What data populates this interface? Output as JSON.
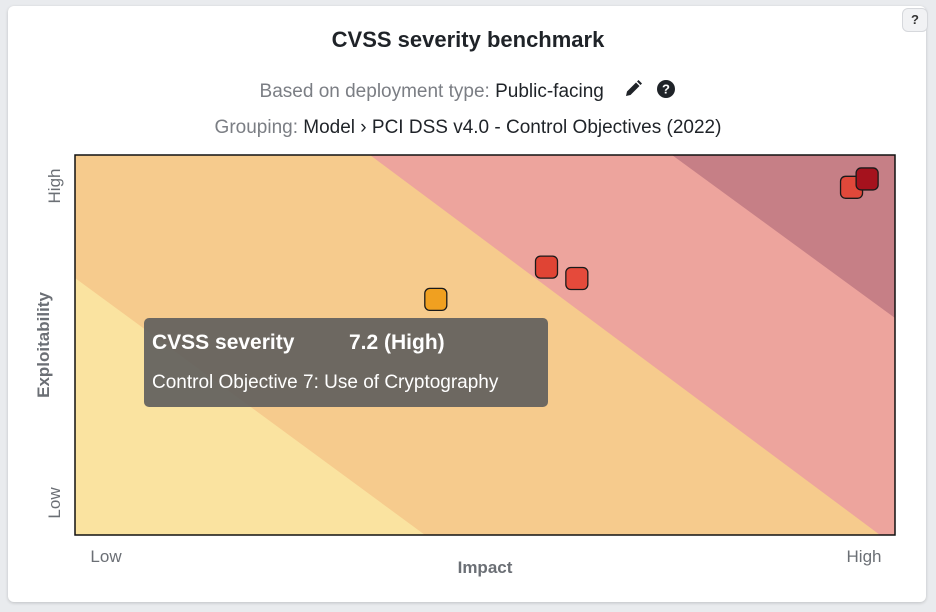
{
  "header": {
    "title": "CVSS severity benchmark",
    "deployment_prefix": "Based on deployment type: ",
    "deployment_value": "Public-facing",
    "grouping_prefix": "Grouping: ",
    "grouping_value": "Model › PCI DSS v4.0 - Control Objectives (2022)",
    "help_label": "?",
    "icons": [
      "pencil-icon",
      "question-circle-icon"
    ]
  },
  "chart_data": {
    "type": "scatter",
    "title": "CVSS severity benchmark",
    "xlabel": "Impact",
    "ylabel": "Exploitability",
    "x_ticks": [
      "Low",
      "High"
    ],
    "y_ticks": [
      "Low",
      "High"
    ],
    "xlim": [
      0,
      1
    ],
    "ylim": [
      0,
      1
    ],
    "grid": false,
    "background_bands": [
      {
        "severity": "Low",
        "color": "#fae3a0"
      },
      {
        "severity": "Medium",
        "color": "#f6cb8d"
      },
      {
        "severity": "High",
        "color": "#eda49d"
      },
      {
        "severity": "Critical",
        "color": "#c67f86"
      }
    ],
    "points": [
      {
        "x": 0.44,
        "y": 0.62,
        "color": "#f0a020"
      },
      {
        "x": 0.575,
        "y": 0.705,
        "color": "#e04434"
      },
      {
        "x": 0.612,
        "y": 0.675,
        "color": "#e54a3b"
      },
      {
        "x": 0.947,
        "y": 0.915,
        "color": "#e0483a"
      },
      {
        "x": 0.966,
        "y": 0.937,
        "color": "#a5121d"
      }
    ]
  },
  "tooltip": {
    "label": "CVSS severity",
    "value": "7.2 (High)",
    "name": "Control Objective 7: Use of Cryptography"
  }
}
